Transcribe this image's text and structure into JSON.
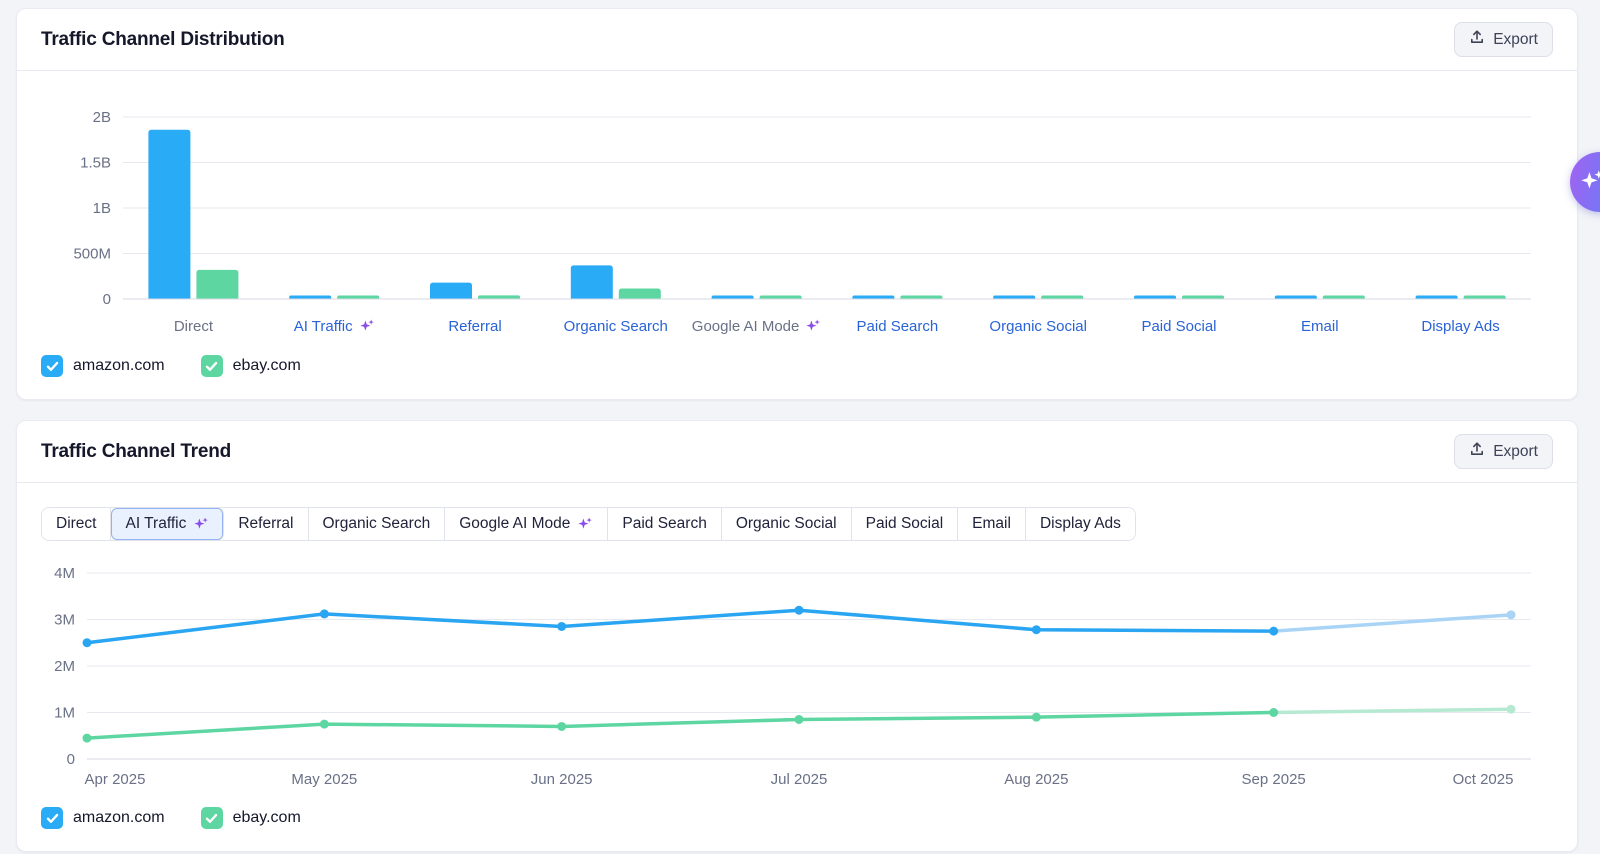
{
  "page": {
    "background": "#F3F4F8"
  },
  "colors": {
    "amazon_blue": "#29ABF5",
    "ebay_green": "#5DD6A2",
    "amazon_forecast": "#A9D4F6",
    "ebay_forecast": "#B6E9D2",
    "link_blue": "#2A63D6",
    "axis_gray": "#6A7186",
    "sparkle_purple": "#8A4DE8",
    "grid": "#E7E9F1",
    "baseline": "#D7DAE4"
  },
  "distribution": {
    "title": "Traffic Channel Distribution",
    "export_label": "Export",
    "legend": [
      {
        "label": "amazon.com",
        "color": "#29ABF5",
        "checked": true
      },
      {
        "label": "ebay.com",
        "color": "#5DD6A2",
        "checked": true
      }
    ]
  },
  "trend": {
    "title": "Traffic Channel Trend",
    "export_label": "Export",
    "tabs": [
      {
        "label": "Direct"
      },
      {
        "label": "AI Traffic",
        "sparkle": true,
        "active": true
      },
      {
        "label": "Referral"
      },
      {
        "label": "Organic Search"
      },
      {
        "label": "Google AI Mode",
        "sparkle": true
      },
      {
        "label": "Paid Search"
      },
      {
        "label": "Organic Social"
      },
      {
        "label": "Paid Social"
      },
      {
        "label": "Email"
      },
      {
        "label": "Display Ads"
      }
    ],
    "legend": [
      {
        "label": "amazon.com",
        "color": "#29ABF5",
        "checked": true
      },
      {
        "label": "ebay.com",
        "color": "#5DD6A2",
        "checked": true
      }
    ]
  },
  "ai_fab": {
    "icon": "sparkle-icon"
  },
  "chart_data": [
    {
      "type": "bar",
      "title": "Traffic Channel Distribution",
      "categories": [
        "Direct",
        "AI Traffic",
        "Referral",
        "Organic Search",
        "Google AI Mode",
        "Paid Search",
        "Organic Social",
        "Paid Social",
        "Email",
        "Display Ads"
      ],
      "category_styles": [
        {
          "link": false,
          "sparkle": false
        },
        {
          "link": true,
          "sparkle": true
        },
        {
          "link": true,
          "sparkle": false
        },
        {
          "link": true,
          "sparkle": false
        },
        {
          "link": false,
          "sparkle": true
        },
        {
          "link": true,
          "sparkle": false
        },
        {
          "link": true,
          "sparkle": false
        },
        {
          "link": true,
          "sparkle": false
        },
        {
          "link": true,
          "sparkle": false
        },
        {
          "link": true,
          "sparkle": false
        }
      ],
      "series": [
        {
          "name": "amazon.com",
          "color": "#29ABF5",
          "values_millions": [
            1860,
            20,
            180,
            370,
            15,
            18,
            30,
            15,
            15,
            15
          ]
        },
        {
          "name": "ebay.com",
          "color": "#5DD6A2",
          "values_millions": [
            320,
            20,
            40,
            115,
            18,
            15,
            20,
            12,
            12,
            12
          ]
        }
      ],
      "y_ticks": [
        {
          "label": "2B",
          "value": 2000
        },
        {
          "label": "1.5B",
          "value": 1500
        },
        {
          "label": "1B",
          "value": 1000
        },
        {
          "label": "500M",
          "value": 500
        },
        {
          "label": "0",
          "value": 0
        }
      ],
      "ylim_millions": [
        0,
        2000
      ],
      "grid": true,
      "legend_position": "bottom"
    },
    {
      "type": "line",
      "title": "Traffic Channel Trend",
      "selected_channel": "AI Traffic",
      "x": [
        "Apr 2025",
        "May 2025",
        "Jun 2025",
        "Jul 2025",
        "Aug 2025",
        "Sep 2025",
        "Oct 2025"
      ],
      "series": [
        {
          "name": "amazon.com",
          "color": "#29A5F2",
          "forecast_color": "#A9D4F6",
          "values_millions": [
            2.5,
            3.12,
            2.85,
            3.2,
            2.78,
            2.75,
            3.1
          ]
        },
        {
          "name": "ebay.com",
          "color": "#5DD6A2",
          "forecast_color": "#B6E9D2",
          "values_millions": [
            0.45,
            0.75,
            0.7,
            0.85,
            0.9,
            1.0,
            1.07
          ]
        }
      ],
      "forecast_start_index": 5,
      "y_ticks": [
        {
          "label": "4M",
          "value": 4
        },
        {
          "label": "3M",
          "value": 3
        },
        {
          "label": "2M",
          "value": 2
        },
        {
          "label": "1M",
          "value": 1
        },
        {
          "label": "0",
          "value": 0
        }
      ],
      "ylim_millions": [
        0,
        4
      ],
      "grid": true,
      "legend_position": "bottom"
    }
  ]
}
